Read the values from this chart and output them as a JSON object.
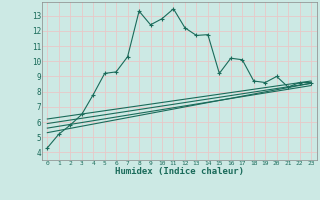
{
  "title": "",
  "xlabel": "Humidex (Indice chaleur)",
  "ylabel": "",
  "bg_color": "#cce9e4",
  "grid_color": "#e8c8c8",
  "line_color": "#1a6b5a",
  "xlim": [
    -0.5,
    23.5
  ],
  "ylim": [
    3.5,
    13.9
  ],
  "xticks": [
    0,
    1,
    2,
    3,
    4,
    5,
    6,
    7,
    8,
    9,
    10,
    11,
    12,
    13,
    14,
    15,
    16,
    17,
    18,
    19,
    20,
    21,
    22,
    23
  ],
  "yticks": [
    4,
    5,
    6,
    7,
    8,
    9,
    10,
    11,
    12,
    13
  ],
  "main_x": [
    0,
    1,
    2,
    3,
    4,
    5,
    6,
    7,
    8,
    9,
    10,
    11,
    12,
    13,
    14,
    15,
    16,
    17,
    18,
    19,
    20,
    21,
    22,
    23
  ],
  "main_y": [
    4.3,
    5.2,
    5.8,
    6.5,
    7.8,
    9.2,
    9.3,
    10.3,
    13.3,
    12.4,
    12.8,
    13.45,
    12.2,
    11.7,
    11.75,
    9.2,
    10.2,
    10.1,
    8.7,
    8.6,
    9.0,
    8.3,
    8.6,
    8.6
  ],
  "line2_x": [
    0,
    23
  ],
  "line2_y": [
    5.3,
    8.55
  ],
  "line3_x": [
    0,
    23
  ],
  "line3_y": [
    5.6,
    8.4
  ],
  "line4_x": [
    0,
    23
  ],
  "line4_y": [
    5.9,
    8.55
  ],
  "line5_x": [
    0,
    23
  ],
  "line5_y": [
    6.2,
    8.7
  ]
}
